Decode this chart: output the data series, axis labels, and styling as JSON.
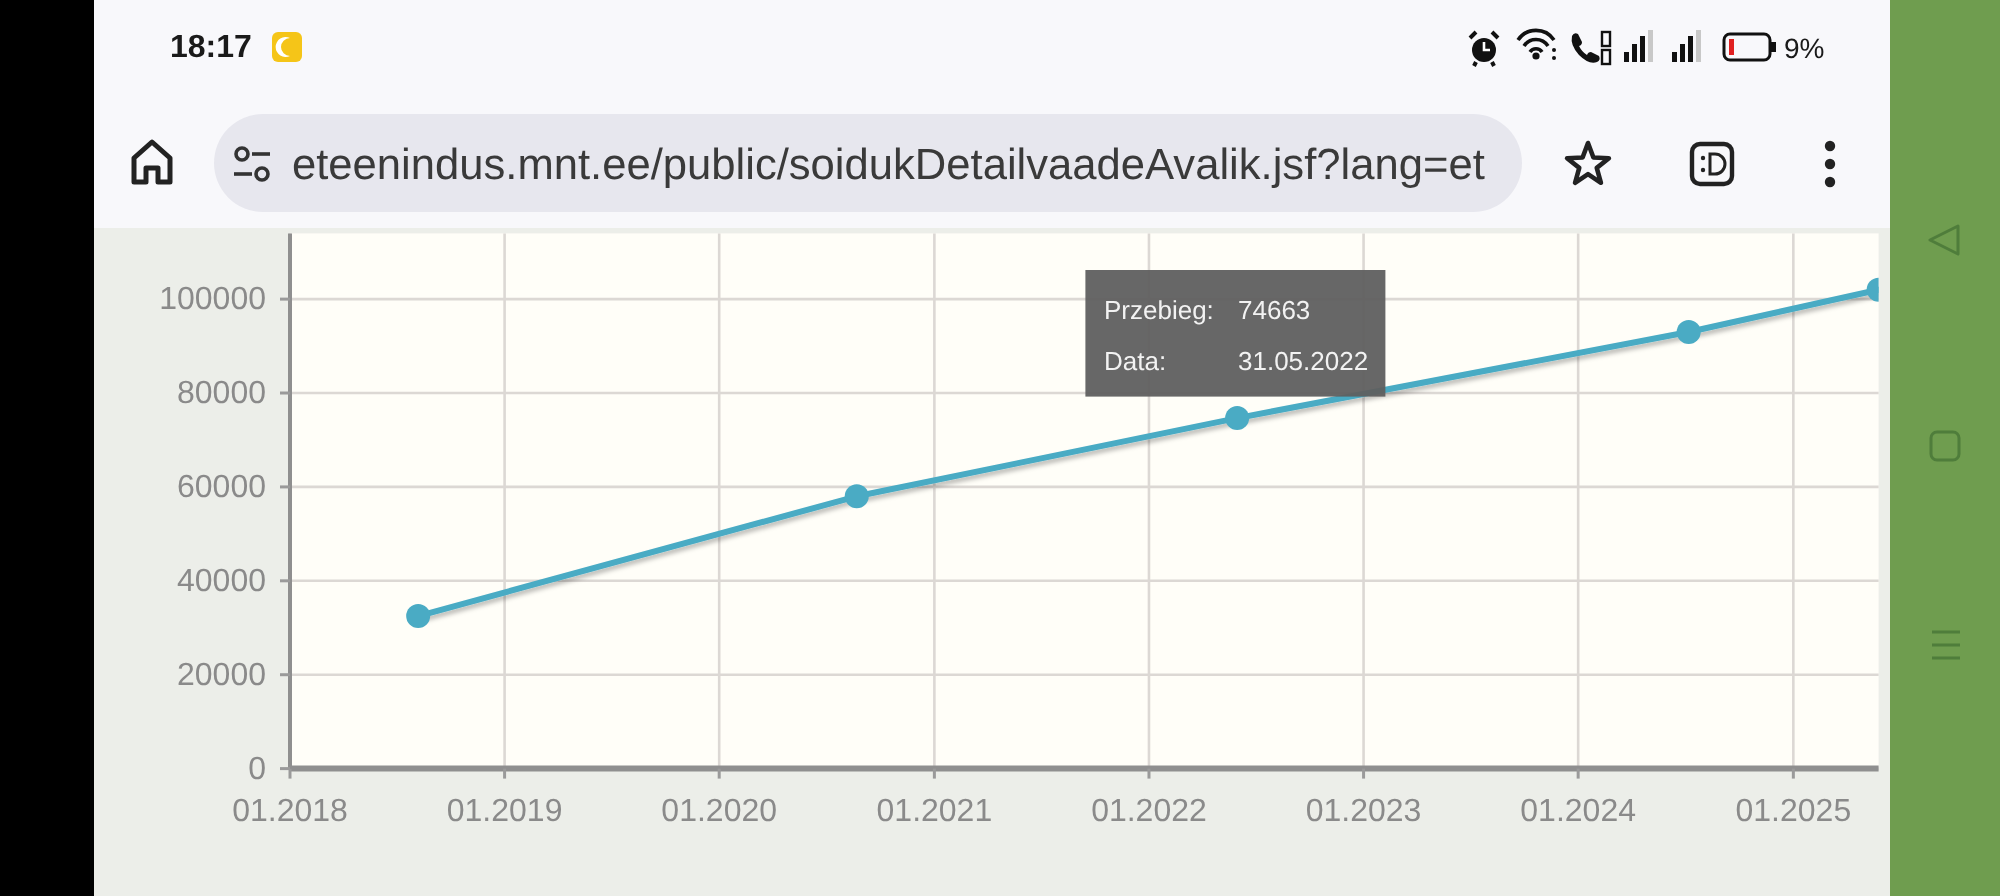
{
  "chart_data": {
    "type": "line",
    "x": [
      "2018-08-07",
      "2020-08-22",
      "2022-05-31",
      "2024-07-07",
      "2025-05-26"
    ],
    "series": [
      {
        "color": "#4aabc4",
        "values": [
          32500,
          58000,
          74663,
          93000,
          102000
        ]
      }
    ],
    "xlim": [
      "2018-01-01",
      "2025-05-26"
    ],
    "xticks": [
      {
        "value": "2018-01-01",
        "label": "01.2018"
      },
      {
        "value": "2019-01-01",
        "label": "01.2019"
      },
      {
        "value": "2020-01-01",
        "label": "01.2020"
      },
      {
        "value": "2021-01-01",
        "label": "01.2021"
      },
      {
        "value": "2022-01-01",
        "label": "01.2022"
      },
      {
        "value": "2023-01-01",
        "label": "01.2023"
      },
      {
        "value": "2024-01-01",
        "label": "01.2024"
      },
      {
        "value": "2025-01-01",
        "label": "01.2025"
      }
    ],
    "ylim": [
      0,
      114000
    ],
    "yticks": [
      0,
      20000,
      40000,
      60000,
      80000,
      100000
    ],
    "grid": true,
    "marker": "circle",
    "annotations": [
      "18:17",
      "9%",
      "eteenindus.mnt.ee/public/soidukDetailvaadeAvalik.jsf?lang=et",
      "Przebieg: 74663",
      "Data: 31.05.2022"
    ]
  }
}
